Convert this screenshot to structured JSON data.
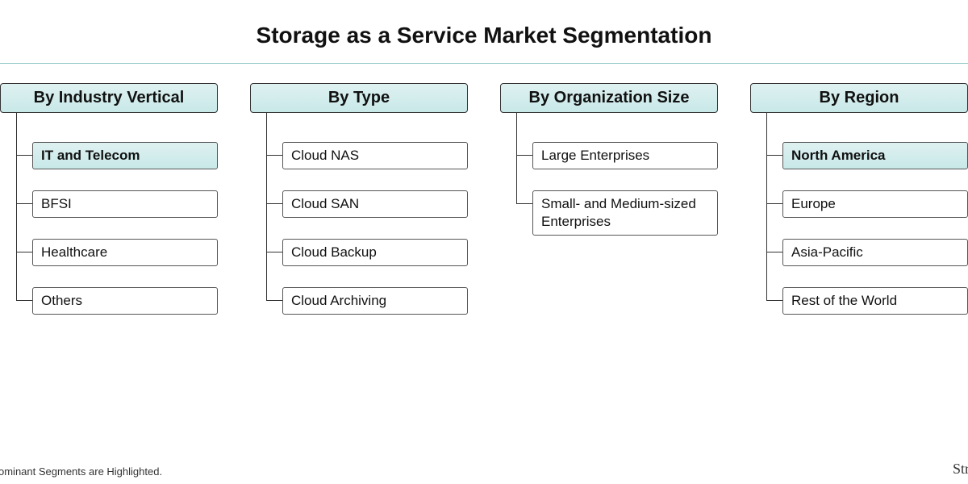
{
  "title": "Storage as a Service Market Segmentation",
  "footnote_left": "ominant Segments are Highlighted.",
  "footnote_right": "Str",
  "colors": {
    "header_gradient_top": "#dff1f1",
    "header_gradient_bottom": "#c8e8e8",
    "highlight_gradient_top": "#dff1f1",
    "highlight_gradient_bottom": "#c8e8e8",
    "divider": "#8fc7c7",
    "line": "#333333",
    "background": "#ffffff",
    "text": "#111111"
  },
  "typography": {
    "title_fontsize": 28,
    "title_weight": 700,
    "header_fontsize": 20,
    "header_weight": 700,
    "leaf_fontsize": 17,
    "footnote_fontsize": 13
  },
  "layout": {
    "type": "tree",
    "columns_gap": 40,
    "leaf_indent": 40,
    "leaf_spacing": 26
  },
  "columns": [
    {
      "header": "By Industry Vertical",
      "items": [
        {
          "label": "IT and Telecom",
          "highlighted": true
        },
        {
          "label": "BFSI",
          "highlighted": false
        },
        {
          "label": "Healthcare",
          "highlighted": false
        },
        {
          "label": "Others",
          "highlighted": false
        }
      ]
    },
    {
      "header": "By Type",
      "items": [
        {
          "label": "Cloud NAS",
          "highlighted": false
        },
        {
          "label": "Cloud SAN",
          "highlighted": false
        },
        {
          "label": "Cloud Backup",
          "highlighted": false
        },
        {
          "label": "Cloud Archiving",
          "highlighted": false
        }
      ]
    },
    {
      "header": "By Organization Size",
      "items": [
        {
          "label": "Large Enterprises",
          "highlighted": false
        },
        {
          "label": "Small- and Medium-sized Enterprises",
          "highlighted": false
        }
      ]
    },
    {
      "header": "By Region",
      "items": [
        {
          "label": "North America",
          "highlighted": true
        },
        {
          "label": "Europe",
          "highlighted": false
        },
        {
          "label": "Asia-Pacific",
          "highlighted": false
        },
        {
          "label": "Rest of the World",
          "highlighted": false
        }
      ]
    }
  ]
}
